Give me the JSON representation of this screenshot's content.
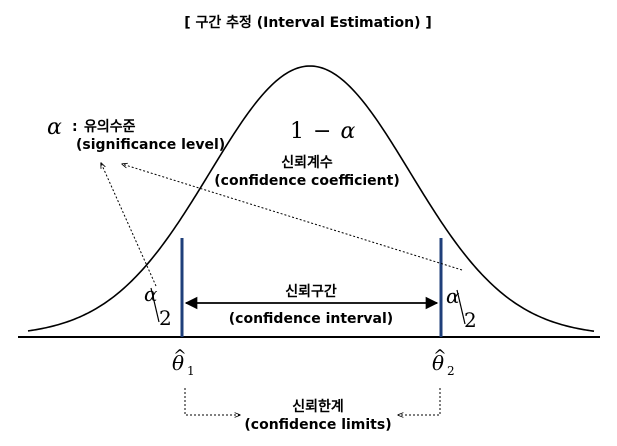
{
  "title": "[ 구간 추정 (Interval Estimation) ]",
  "alpha_label": {
    "symbol": "α",
    "separator": ":",
    "ko": "유의수준",
    "en": "(significance level)"
  },
  "center_label": {
    "formula_one": "1",
    "formula_minus": "−",
    "formula_alpha": "α",
    "ko": "신뢰계수",
    "en": "(confidence coefficient)"
  },
  "tail_left": {
    "numerator": "α",
    "denominator": "2"
  },
  "tail_right": {
    "numerator": "α",
    "denominator": "2"
  },
  "interval_label": {
    "ko": "신뢰구간",
    "en": "(confidence interval)"
  },
  "bound_left": {
    "symbol": "θ",
    "hat": "^",
    "subscript": "1"
  },
  "bound_right": {
    "symbol": "θ",
    "hat": "^",
    "subscript": "2"
  },
  "limits_label": {
    "ko": "신뢰한계",
    "en": "(confidence limits)"
  },
  "colors": {
    "curve": "#000000",
    "bounds": "#1f3f7a",
    "text": "#000000"
  }
}
